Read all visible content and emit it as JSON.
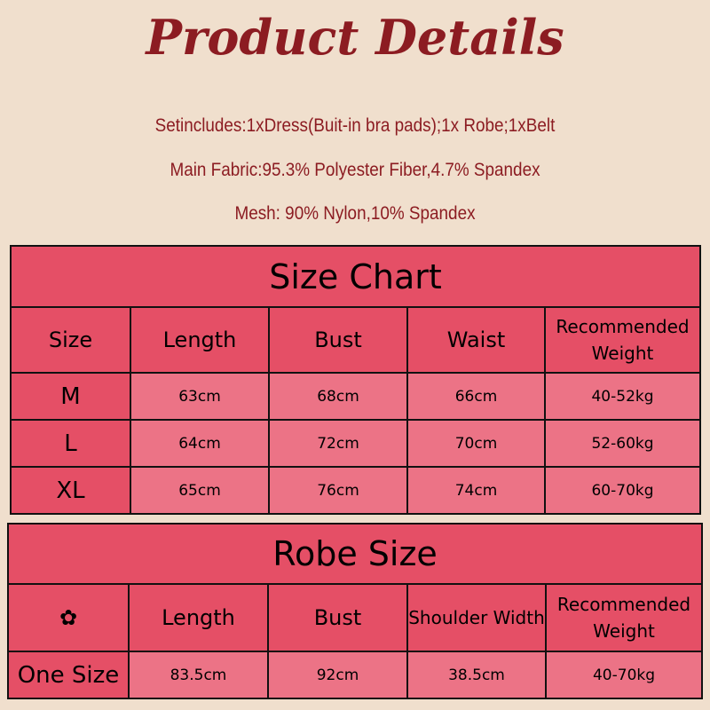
{
  "title": "Product Details",
  "details": [
    "Setincludes:1xDress(Buit-in bra pads);1x Robe;1xBelt",
    "Main Fabric:95.3% Polyester Fiber,4.7% Spandex",
    "Mesh: 90% Nylon,10% Spandex"
  ],
  "size_chart": {
    "title": "Size Chart",
    "headers": [
      "Size",
      "Length",
      "Bust",
      "Waist",
      "Recommended Weight"
    ],
    "rows": [
      [
        "M",
        "63cm",
        "68cm",
        "66cm",
        "40-52kg"
      ],
      [
        "L",
        "64cm",
        "72cm",
        "70cm",
        "52-60kg"
      ],
      [
        "XL",
        "65cm",
        "76cm",
        "74cm",
        "60-70kg"
      ]
    ]
  },
  "robe_size": {
    "title": "Robe Size",
    "headers": [
      "✿",
      "Length",
      "Bust",
      "Shoulder Width",
      "Recommended Weight"
    ],
    "rows": [
      [
        "One Size",
        "83.5cm",
        "92cm",
        "38.5cm",
        "40-70kg"
      ]
    ]
  },
  "colors": {
    "background": "#f0dfcd",
    "header": "#e54f66",
    "cell": "#ec7386",
    "title": "#8c1c22"
  }
}
